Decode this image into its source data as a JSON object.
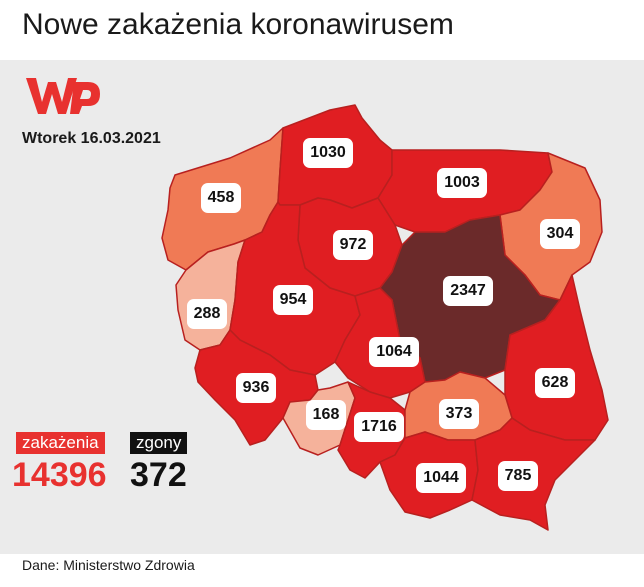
{
  "title": "Nowe zakażenia koronawirusem",
  "date": "Wtorek 16.03.2021",
  "source": "Dane: Ministerstwo Zdrowia",
  "logo": {
    "icon": "wp-logo",
    "color": "#e8312f"
  },
  "totals": {
    "infections_label": "zakażenia",
    "infections": "14396",
    "deaths_label": "zgony",
    "deaths": "372"
  },
  "colors": {
    "lowest": "#f5b29b",
    "low": "#f07a55",
    "high": "#e01e22",
    "highest": "#6b2a2a",
    "infections_accent": "#e8312f"
  },
  "regions": [
    {
      "id": "zachodniopomorskie",
      "value": "458",
      "level": "low"
    },
    {
      "id": "pomorskie",
      "value": "1030",
      "level": "high"
    },
    {
      "id": "warminsko-mazurskie",
      "value": "1003",
      "level": "high"
    },
    {
      "id": "podlaskie",
      "value": "304",
      "level": "low"
    },
    {
      "id": "kujawsko-pomorskie",
      "value": "972",
      "level": "high"
    },
    {
      "id": "lubuskie",
      "value": "288",
      "level": "lowest"
    },
    {
      "id": "wielkopolskie",
      "value": "954",
      "level": "high"
    },
    {
      "id": "mazowieckie",
      "value": "2347",
      "level": "highest"
    },
    {
      "id": "lodzkie",
      "value": "1064",
      "level": "high"
    },
    {
      "id": "lubelskie",
      "value": "628",
      "level": "high"
    },
    {
      "id": "dolnoslaskie",
      "value": "936",
      "level": "high"
    },
    {
      "id": "opolskie",
      "value": "168",
      "level": "lowest"
    },
    {
      "id": "slaskie",
      "value": "1716",
      "level": "high"
    },
    {
      "id": "swietokrzyskie",
      "value": "373",
      "level": "low"
    },
    {
      "id": "malopolskie",
      "value": "1044",
      "level": "high"
    },
    {
      "id": "podkarpackie",
      "value": "785",
      "level": "high"
    }
  ]
}
